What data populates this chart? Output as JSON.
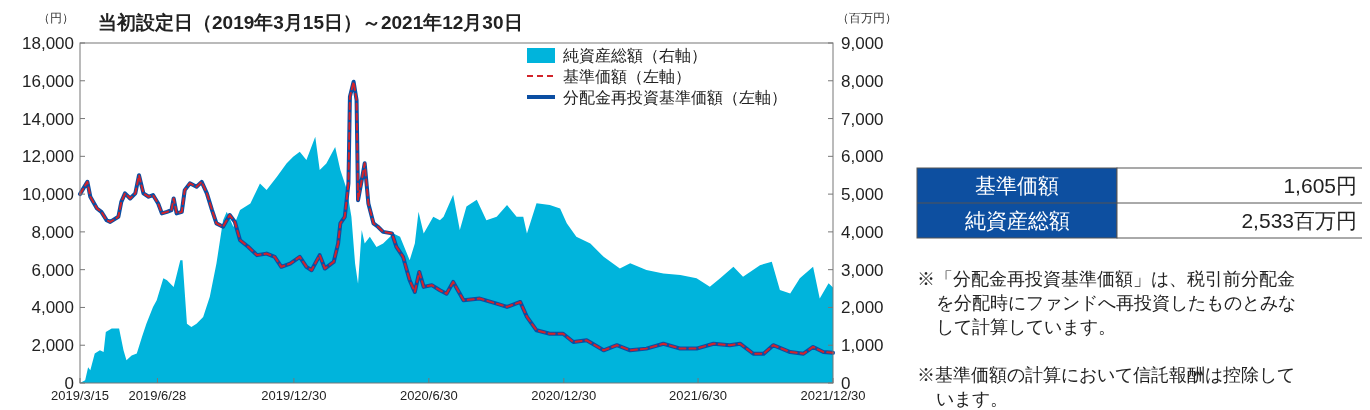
{
  "chart_data": {
    "type": "line",
    "title": "当初設定日（2019年3月15日）～2021年12月30日",
    "ylabel": "（円）",
    "y2label": "（百万円）",
    "xlim": [
      "2019-03-15",
      "2021-12-30"
    ],
    "xticks": [
      {
        "value": "2019-03-15",
        "label": "2019/3/15"
      },
      {
        "value": "2019-06-28",
        "label": "2019/6/28"
      },
      {
        "value": "2019-12-30",
        "label": "2019/12/30"
      },
      {
        "value": "2020-06-30",
        "label": "2020/6/30"
      },
      {
        "value": "2020-12-30",
        "label": "2020/12/30"
      },
      {
        "value": "2021-06-30",
        "label": "2021/6/30"
      },
      {
        "value": "2021-12-30",
        "label": "2021/12/30"
      }
    ],
    "ylim": [
      0,
      18000
    ],
    "yticks": [
      {
        "value": 0,
        "label": "0"
      },
      {
        "value": 2000,
        "label": "2,000"
      },
      {
        "value": 4000,
        "label": "4,000"
      },
      {
        "value": 6000,
        "label": "6,000"
      },
      {
        "value": 8000,
        "label": "8,000"
      },
      {
        "value": 10000,
        "label": "10,000"
      },
      {
        "value": 12000,
        "label": "12,000"
      },
      {
        "value": 14000,
        "label": "14,000"
      },
      {
        "value": 16000,
        "label": "16,000"
      },
      {
        "value": 18000,
        "label": "18,000"
      }
    ],
    "y2lim": [
      0,
      9000
    ],
    "y2ticks": [
      {
        "value": 0,
        "label": "0"
      },
      {
        "value": 1000,
        "label": "1,000"
      },
      {
        "value": 2000,
        "label": "2,000"
      },
      {
        "value": 3000,
        "label": "3,000"
      },
      {
        "value": 4000,
        "label": "4,000"
      },
      {
        "value": 5000,
        "label": "5,000"
      },
      {
        "value": 6000,
        "label": "6,000"
      },
      {
        "value": 7000,
        "label": "7,000"
      },
      {
        "value": 8000,
        "label": "8,000"
      },
      {
        "value": 9000,
        "label": "9,000"
      }
    ],
    "grid": false,
    "legend": "top right",
    "series": [
      {
        "name": "純資産総額（右軸）",
        "type": "area",
        "axis": "y2",
        "color": "#00b4dc",
        "x": [
          "2019-03-15",
          "2019-03-22",
          "2019-03-26",
          "2019-03-29",
          "2019-04-04",
          "2019-04-11",
          "2019-04-16",
          "2019-04-19",
          "2019-04-27",
          "2019-05-07",
          "2019-05-13",
          "2019-05-17",
          "2019-05-24",
          "2019-05-31",
          "2019-06-07",
          "2019-06-13",
          "2019-06-22",
          "2019-06-27",
          "2019-07-06",
          "2019-07-11",
          "2019-07-20",
          "2019-07-29",
          "2019-08-01",
          "2019-08-07",
          "2019-08-13",
          "2019-08-20",
          "2019-08-29",
          "2019-09-07",
          "2019-09-16",
          "2019-09-25",
          "2019-09-30",
          "2019-10-09",
          "2019-10-18",
          "2019-11-01",
          "2019-11-14",
          "2019-11-23",
          "2019-12-07",
          "2019-12-20",
          "2019-12-29",
          "2020-01-07",
          "2020-01-16",
          "2020-01-28",
          "2020-02-03",
          "2020-02-12",
          "2020-02-24",
          "2020-03-02",
          "2020-03-11",
          "2020-03-17",
          "2020-03-22",
          "2020-03-26",
          "2020-03-31",
          "2020-04-04",
          "2020-04-11",
          "2020-04-20",
          "2020-04-29",
          "2020-05-13",
          "2020-05-22",
          "2020-06-04",
          "2020-06-11",
          "2020-06-16",
          "2020-06-23",
          "2020-07-06",
          "2020-07-15",
          "2020-07-20",
          "2020-08-02",
          "2020-08-11",
          "2020-08-20",
          "2020-09-03",
          "2020-09-16",
          "2020-09-30",
          "2020-10-14",
          "2020-10-27",
          "2020-11-05",
          "2020-11-10",
          "2020-11-23",
          "2020-12-11",
          "2020-12-25",
          "2021-01-03",
          "2021-01-16",
          "2021-02-04",
          "2021-02-22",
          "2021-03-16",
          "2021-03-30",
          "2021-04-21",
          "2021-05-14",
          "2021-06-06",
          "2021-06-28",
          "2021-07-16",
          "2021-07-30",
          "2021-08-17",
          "2021-08-30",
          "2021-09-22",
          "2021-10-08",
          "2021-10-19",
          "2021-11-02",
          "2021-11-15",
          "2021-12-03",
          "2021-12-12",
          "2021-12-24",
          "2021-12-30"
        ],
        "values": [
          0,
          70,
          420,
          340,
          780,
          870,
          820,
          1350,
          1440,
          1440,
          870,
          600,
          730,
          780,
          1220,
          1570,
          2010,
          2190,
          2770,
          2720,
          2540,
          3250,
          3250,
          1570,
          1480,
          1570,
          1750,
          2280,
          3160,
          4310,
          4530,
          4130,
          4580,
          4750,
          5280,
          5110,
          5460,
          5810,
          5990,
          6120,
          5900,
          6520,
          5640,
          5810,
          6250,
          5640,
          5110,
          4400,
          3160,
          2630,
          4050,
          3690,
          3870,
          3600,
          3690,
          3960,
          3870,
          3250,
          3690,
          4530,
          3960,
          4400,
          4310,
          4400,
          4980,
          4050,
          4670,
          4850,
          4310,
          4400,
          4710,
          4400,
          4400,
          3960,
          4760,
          4710,
          4620,
          4230,
          3870,
          3690,
          3340,
          3030,
          3170,
          2990,
          2900,
          2860,
          2770,
          2550,
          2770,
          3080,
          2810,
          3120,
          3210,
          2460,
          2370,
          2770,
          3080,
          2240,
          2640,
          2530
        ]
      },
      {
        "name": "基準価額（左軸）",
        "color": "#d2232a",
        "line_style": "dashed",
        "x": [
          "2019-03-15",
          "2019-03-25",
          "2019-03-29",
          "2019-04-07",
          "2019-04-13",
          "2019-04-20",
          "2019-04-25",
          "2019-05-06",
          "2019-05-10",
          "2019-05-15",
          "2019-05-22",
          "2019-05-29",
          "2019-06-03",
          "2019-06-09",
          "2019-06-16",
          "2019-06-22",
          "2019-06-29",
          "2019-07-04",
          "2019-07-11",
          "2019-07-17",
          "2019-07-20",
          "2019-07-24",
          "2019-07-31",
          "2019-08-04",
          "2019-08-11",
          "2019-08-20",
          "2019-08-27",
          "2019-09-03",
          "2019-09-10",
          "2019-09-16",
          "2019-09-25",
          "2019-10-04",
          "2019-10-11",
          "2019-10-18",
          "2019-10-29",
          "2019-11-10",
          "2019-11-23",
          "2019-12-04",
          "2019-12-13",
          "2019-12-25",
          "2020-01-07",
          "2020-01-16",
          "2020-01-23",
          "2020-02-03",
          "2020-02-10",
          "2020-02-22",
          "2020-02-28",
          "2020-03-02",
          "2020-03-08",
          "2020-03-13",
          "2020-03-15",
          "2020-03-20",
          "2020-03-24",
          "2020-03-26",
          "2020-03-31",
          "2020-04-04",
          "2020-04-09",
          "2020-04-16",
          "2020-04-22",
          "2020-04-29",
          "2020-05-11",
          "2020-05-17",
          "2020-05-26",
          "2020-06-04",
          "2020-06-11",
          "2020-06-17",
          "2020-06-23",
          "2020-07-04",
          "2020-07-15",
          "2020-07-24",
          "2020-08-02",
          "2020-08-16",
          "2020-09-07",
          "2020-09-30",
          "2020-10-14",
          "2020-11-01",
          "2020-11-10",
          "2020-11-23",
          "2020-12-11",
          "2020-12-29",
          "2021-01-12",
          "2021-01-30",
          "2021-02-22",
          "2021-03-12",
          "2021-03-30",
          "2021-04-21",
          "2021-05-14",
          "2021-06-06",
          "2021-06-28",
          "2021-07-21",
          "2021-08-12",
          "2021-08-26",
          "2021-09-13",
          "2021-09-27",
          "2021-10-10",
          "2021-11-02",
          "2021-11-20",
          "2021-12-03",
          "2021-12-17",
          "2021-12-30"
        ],
        "values": [
          10000,
          10650,
          9860,
          9240,
          9060,
          8620,
          8530,
          8800,
          9590,
          10040,
          9770,
          10040,
          11000,
          10040,
          9860,
          9950,
          9500,
          8980,
          9060,
          9150,
          9770,
          8980,
          9060,
          10210,
          10570,
          10390,
          10650,
          10040,
          9150,
          8450,
          8270,
          8890,
          8530,
          7560,
          7210,
          6770,
          6850,
          6680,
          6150,
          6320,
          6680,
          6150,
          5970,
          6770,
          6060,
          6410,
          7390,
          8450,
          8800,
          10570,
          15160,
          15950,
          14980,
          9680,
          10740,
          11630,
          9500,
          8450,
          8270,
          8000,
          7920,
          7210,
          6680,
          5440,
          4820,
          5880,
          5090,
          5180,
          4910,
          4730,
          5350,
          4380,
          4470,
          4200,
          4030,
          4290,
          3500,
          2790,
          2610,
          2610,
          2170,
          2260,
          1730,
          2000,
          1730,
          1820,
          2080,
          1820,
          1820,
          2080,
          2000,
          2080,
          1550,
          1550,
          2000,
          1640,
          1550,
          1910,
          1640,
          1600
        ]
      },
      {
        "name": "分配金再投資基準価額（左軸）",
        "color": "#0b4ea2",
        "line_style": "solid",
        "x": [
          "2019-03-15",
          "2019-03-25",
          "2019-03-29",
          "2019-04-07",
          "2019-04-13",
          "2019-04-20",
          "2019-04-25",
          "2019-05-06",
          "2019-05-10",
          "2019-05-15",
          "2019-05-22",
          "2019-05-29",
          "2019-06-03",
          "2019-06-09",
          "2019-06-16",
          "2019-06-22",
          "2019-06-29",
          "2019-07-04",
          "2019-07-11",
          "2019-07-17",
          "2019-07-20",
          "2019-07-24",
          "2019-07-31",
          "2019-08-04",
          "2019-08-11",
          "2019-08-20",
          "2019-08-27",
          "2019-09-03",
          "2019-09-10",
          "2019-09-16",
          "2019-09-25",
          "2019-10-04",
          "2019-10-11",
          "2019-10-18",
          "2019-10-29",
          "2019-11-10",
          "2019-11-23",
          "2019-12-04",
          "2019-12-13",
          "2019-12-25",
          "2020-01-07",
          "2020-01-16",
          "2020-01-23",
          "2020-02-03",
          "2020-02-10",
          "2020-02-22",
          "2020-02-28",
          "2020-03-02",
          "2020-03-08",
          "2020-03-13",
          "2020-03-15",
          "2020-03-20",
          "2020-03-24",
          "2020-03-26",
          "2020-03-31",
          "2020-04-04",
          "2020-04-09",
          "2020-04-16",
          "2020-04-22",
          "2020-04-29",
          "2020-05-11",
          "2020-05-17",
          "2020-05-26",
          "2020-06-04",
          "2020-06-11",
          "2020-06-17",
          "2020-06-23",
          "2020-07-04",
          "2020-07-15",
          "2020-07-24",
          "2020-08-02",
          "2020-08-16",
          "2020-09-07",
          "2020-09-30",
          "2020-10-14",
          "2020-11-01",
          "2020-11-10",
          "2020-11-23",
          "2020-12-11",
          "2020-12-29",
          "2021-01-12",
          "2021-01-30",
          "2021-02-22",
          "2021-03-12",
          "2021-03-30",
          "2021-04-21",
          "2021-05-14",
          "2021-06-06",
          "2021-06-28",
          "2021-07-21",
          "2021-08-12",
          "2021-08-26",
          "2021-09-13",
          "2021-09-27",
          "2021-10-10",
          "2021-11-02",
          "2021-11-20",
          "2021-12-03",
          "2021-12-17",
          "2021-12-30"
        ],
        "values": [
          10000,
          10650,
          9860,
          9240,
          9060,
          8620,
          8530,
          8800,
          9590,
          10040,
          9770,
          10040,
          11000,
          10040,
          9860,
          9950,
          9500,
          8980,
          9060,
          9150,
          9770,
          8980,
          9060,
          10210,
          10570,
          10390,
          10650,
          10040,
          9150,
          8450,
          8270,
          8890,
          8530,
          7560,
          7210,
          6770,
          6850,
          6680,
          6150,
          6320,
          6680,
          6150,
          5970,
          6770,
          6060,
          6410,
          7390,
          8450,
          8800,
          10570,
          15160,
          15950,
          14980,
          9680,
          10740,
          11630,
          9500,
          8450,
          8270,
          8000,
          7920,
          7210,
          6680,
          5440,
          4820,
          5880,
          5090,
          5180,
          4910,
          4730,
          5350,
          4380,
          4470,
          4200,
          4030,
          4290,
          3500,
          2790,
          2610,
          2610,
          2170,
          2260,
          1730,
          2000,
          1730,
          1820,
          2080,
          1820,
          1820,
          2080,
          2000,
          2080,
          1550,
          1550,
          2000,
          1640,
          1550,
          1910,
          1640,
          1600
        ]
      }
    ],
    "annotations": [
      "基準価額",
      "1,605円",
      "純資産総額",
      "2,533百万円",
      "※「分配金再投資基準価額」は、税引前分配金を分配時にファンドへ再投資したものとみなして計算しています。",
      "※基準価額の計算において信託報酬は控除しています。"
    ]
  }
}
